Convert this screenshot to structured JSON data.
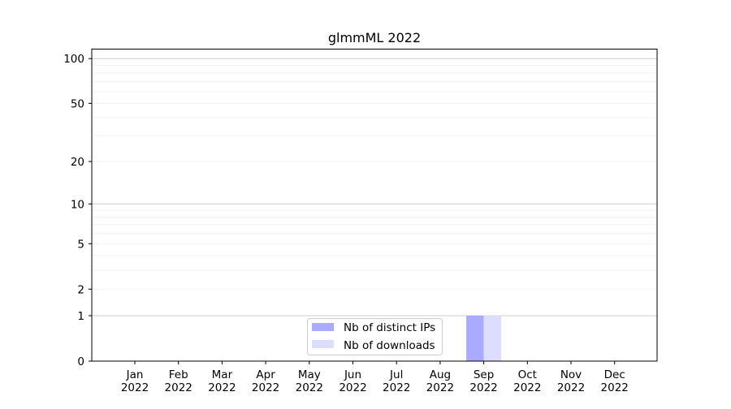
{
  "chart_data": {
    "type": "bar",
    "title": "glmmML 2022",
    "xlabel": "",
    "ylabel": "",
    "yscale": "log(1+y)",
    "ylim": [
      0,
      116
    ],
    "yticks": [
      0,
      1,
      2,
      5,
      10,
      20,
      50,
      100
    ],
    "ytick_labels": [
      "0",
      "1",
      "2",
      "5",
      "10",
      "20",
      "50",
      "100"
    ],
    "grid": true,
    "legend_position": "bottom-center",
    "categories": [
      [
        "Jan",
        "2022"
      ],
      [
        "Feb",
        "2022"
      ],
      [
        "Mar",
        "2022"
      ],
      [
        "Apr",
        "2022"
      ],
      [
        "May",
        "2022"
      ],
      [
        "Jun",
        "2022"
      ],
      [
        "Jul",
        "2022"
      ],
      [
        "Aug",
        "2022"
      ],
      [
        "Sep",
        "2022"
      ],
      [
        "Oct",
        "2022"
      ],
      [
        "Nov",
        "2022"
      ],
      [
        "Dec",
        "2022"
      ]
    ],
    "series": [
      {
        "name": "Nb of distinct IPs",
        "color": "#aaaaff",
        "values": [
          0,
          0,
          0,
          0,
          0,
          0,
          0,
          0,
          1,
          0,
          0,
          0
        ]
      },
      {
        "name": "Nb of downloads",
        "color": "#ddddff",
        "values": [
          0,
          0,
          0,
          0,
          0,
          0,
          0,
          0,
          1,
          0,
          0,
          0
        ]
      }
    ]
  }
}
